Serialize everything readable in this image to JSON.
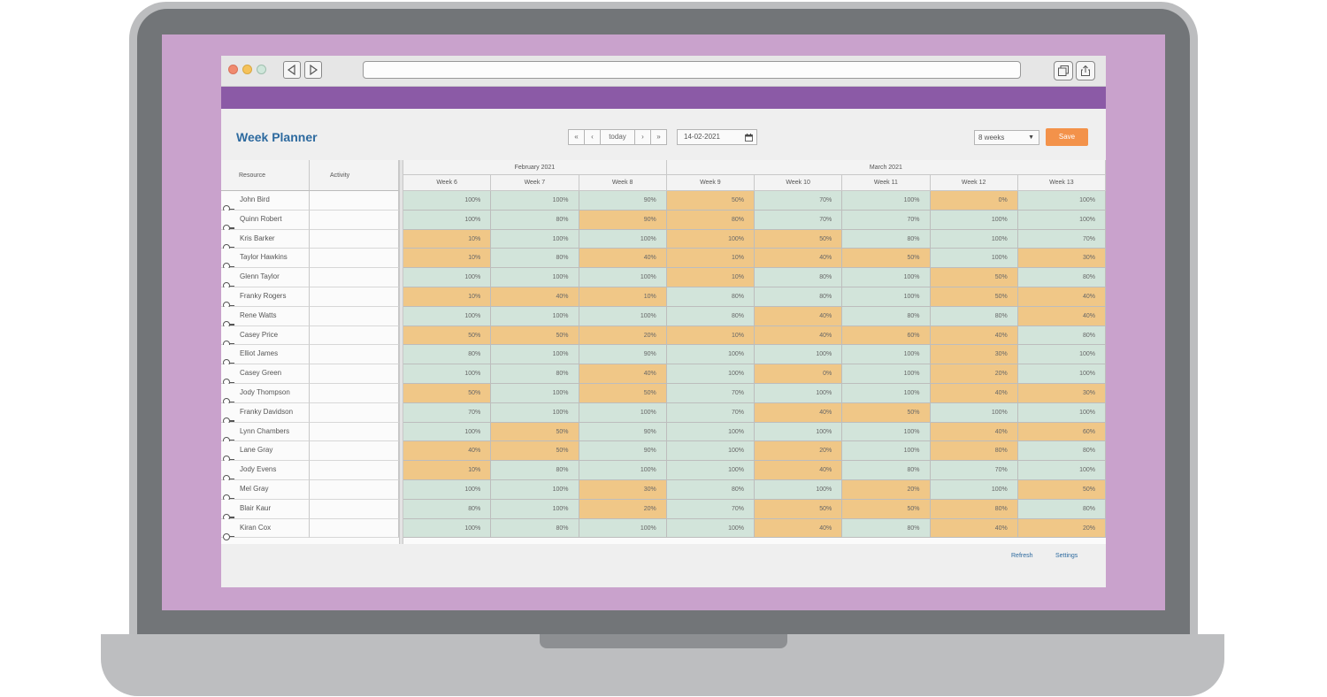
{
  "colors": {
    "screen_bg": "#c9a2cc",
    "banner": "#8b5aa6",
    "title": "#2d6a9f",
    "save": "#f3924a",
    "cell_ok": "#d2e4da",
    "cell_warn": "#f0c787"
  },
  "browser": {
    "back_icon": "triangle-left",
    "forward_icon": "triangle-right",
    "tabs_icon": "overlapping-squares",
    "share_icon": "share-arrow"
  },
  "app": {
    "title": "Week Planner",
    "toolbar": {
      "first_label": "«",
      "prev_label": "‹",
      "today_label": "today",
      "next_label": "›",
      "last_label": "»",
      "date_value": "14-02-2021",
      "range_value": "8 weeks",
      "save_label": "Save"
    },
    "footer": {
      "refresh_label": "Refresh",
      "settings_label": "Settings"
    }
  },
  "grid": {
    "resource_header": "Resource",
    "activity_header": "Activity",
    "months": [
      {
        "label": "February 2021",
        "span": 3
      },
      {
        "label": "March 2021",
        "span": 5
      }
    ],
    "weeks": [
      "Week 6",
      "Week 7",
      "Week 8",
      "Week 9",
      "Week 10",
      "Week 11",
      "Week 12",
      "Week 13"
    ],
    "rows": [
      {
        "resource": "John Bird",
        "activity": "",
        "values": [
          "100%",
          "100%",
          "90%",
          "50%",
          "70%",
          "100%",
          "0%",
          "100%"
        ],
        "status": [
          "ok",
          "ok",
          "ok",
          "warn",
          "ok",
          "ok",
          "warn",
          "ok"
        ]
      },
      {
        "resource": "Quinn Robert",
        "activity": "",
        "values": [
          "100%",
          "80%",
          "90%",
          "80%",
          "70%",
          "70%",
          "100%",
          "100%"
        ],
        "status": [
          "ok",
          "ok",
          "warn",
          "warn",
          "ok",
          "ok",
          "ok",
          "ok"
        ]
      },
      {
        "resource": "Kris Barker",
        "activity": "",
        "values": [
          "10%",
          "100%",
          "100%",
          "100%",
          "50%",
          "80%",
          "100%",
          "70%"
        ],
        "status": [
          "warn",
          "ok",
          "ok",
          "warn",
          "warn",
          "ok",
          "ok",
          "ok"
        ]
      },
      {
        "resource": "Taylor Hawkins",
        "activity": "",
        "values": [
          "10%",
          "80%",
          "40%",
          "10%",
          "40%",
          "50%",
          "100%",
          "30%"
        ],
        "status": [
          "warn",
          "ok",
          "warn",
          "warn",
          "warn",
          "warn",
          "ok",
          "warn"
        ]
      },
      {
        "resource": "Glenn Taylor",
        "activity": "",
        "values": [
          "100%",
          "100%",
          "100%",
          "10%",
          "80%",
          "100%",
          "50%",
          "80%"
        ],
        "status": [
          "ok",
          "ok",
          "ok",
          "warn",
          "ok",
          "ok",
          "warn",
          "ok"
        ]
      },
      {
        "resource": "Franky Rogers",
        "activity": "",
        "values": [
          "10%",
          "40%",
          "10%",
          "80%",
          "80%",
          "100%",
          "50%",
          "40%"
        ],
        "status": [
          "warn",
          "warn",
          "warn",
          "ok",
          "ok",
          "ok",
          "warn",
          "warn"
        ]
      },
      {
        "resource": "Rene Watts",
        "activity": "",
        "values": [
          "100%",
          "100%",
          "100%",
          "80%",
          "40%",
          "80%",
          "80%",
          "40%"
        ],
        "status": [
          "ok",
          "ok",
          "ok",
          "ok",
          "warn",
          "ok",
          "ok",
          "warn"
        ]
      },
      {
        "resource": "Casey Price",
        "activity": "",
        "values": [
          "50%",
          "50%",
          "20%",
          "10%",
          "40%",
          "60%",
          "40%",
          "80%"
        ],
        "status": [
          "warn",
          "warn",
          "warn",
          "warn",
          "warn",
          "warn",
          "warn",
          "ok"
        ]
      },
      {
        "resource": "Elliot James",
        "activity": "",
        "values": [
          "80%",
          "100%",
          "90%",
          "100%",
          "100%",
          "100%",
          "30%",
          "100%"
        ],
        "status": [
          "ok",
          "ok",
          "ok",
          "ok",
          "ok",
          "ok",
          "warn",
          "ok"
        ]
      },
      {
        "resource": "Casey Green",
        "activity": "",
        "values": [
          "100%",
          "80%",
          "40%",
          "100%",
          "0%",
          "100%",
          "20%",
          "100%"
        ],
        "status": [
          "ok",
          "ok",
          "warn",
          "ok",
          "warn",
          "ok",
          "warn",
          "ok"
        ]
      },
      {
        "resource": "Jody Thompson",
        "activity": "",
        "values": [
          "50%",
          "100%",
          "50%",
          "70%",
          "100%",
          "100%",
          "40%",
          "30%"
        ],
        "status": [
          "warn",
          "ok",
          "warn",
          "ok",
          "ok",
          "ok",
          "warn",
          "warn"
        ]
      },
      {
        "resource": "Franky Davidson",
        "activity": "",
        "values": [
          "70%",
          "100%",
          "100%",
          "70%",
          "40%",
          "50%",
          "100%",
          "100%"
        ],
        "status": [
          "ok",
          "ok",
          "ok",
          "ok",
          "warn",
          "warn",
          "ok",
          "ok"
        ]
      },
      {
        "resource": "Lynn Chambers",
        "activity": "",
        "values": [
          "100%",
          "50%",
          "90%",
          "100%",
          "100%",
          "100%",
          "40%",
          "60%"
        ],
        "status": [
          "ok",
          "warn",
          "ok",
          "ok",
          "ok",
          "ok",
          "warn",
          "warn"
        ]
      },
      {
        "resource": "Lane Gray",
        "activity": "",
        "values": [
          "40%",
          "50%",
          "90%",
          "100%",
          "20%",
          "100%",
          "80%",
          "80%"
        ],
        "status": [
          "warn",
          "warn",
          "ok",
          "ok",
          "warn",
          "ok",
          "warn",
          "ok"
        ]
      },
      {
        "resource": "Jody Evens",
        "activity": "",
        "values": [
          "10%",
          "80%",
          "100%",
          "100%",
          "40%",
          "80%",
          "70%",
          "100%"
        ],
        "status": [
          "warn",
          "ok",
          "ok",
          "ok",
          "warn",
          "ok",
          "ok",
          "ok"
        ]
      },
      {
        "resource": "Mel Gray",
        "activity": "",
        "values": [
          "100%",
          "100%",
          "30%",
          "80%",
          "100%",
          "20%",
          "100%",
          "50%"
        ],
        "status": [
          "ok",
          "ok",
          "warn",
          "ok",
          "ok",
          "warn",
          "ok",
          "warn"
        ]
      },
      {
        "resource": "Blair Kaur",
        "activity": "",
        "values": [
          "80%",
          "100%",
          "20%",
          "70%",
          "50%",
          "50%",
          "80%",
          "80%"
        ],
        "status": [
          "ok",
          "ok",
          "warn",
          "ok",
          "warn",
          "warn",
          "warn",
          "ok"
        ]
      },
      {
        "resource": "Kiran Cox",
        "activity": "",
        "values": [
          "100%",
          "80%",
          "100%",
          "100%",
          "40%",
          "80%",
          "40%",
          "20%"
        ],
        "status": [
          "ok",
          "ok",
          "ok",
          "ok",
          "warn",
          "ok",
          "warn",
          "warn"
        ]
      }
    ]
  }
}
